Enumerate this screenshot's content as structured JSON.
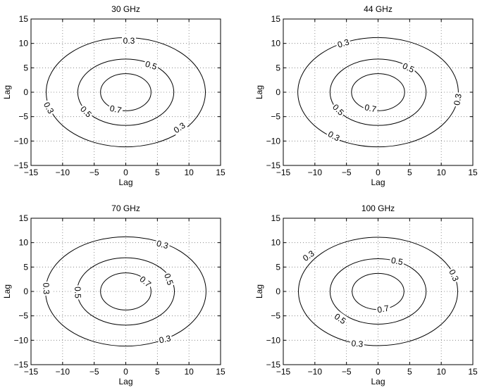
{
  "chart_data": [
    {
      "type": "contour",
      "title": "30 GHz",
      "xlabel": "Lag",
      "ylabel": "Lag",
      "xlim": [
        -15,
        15
      ],
      "ylim": [
        -15,
        15
      ],
      "xticks": [
        "−15",
        "−10",
        "−5",
        "0",
        "5",
        "10",
        "15"
      ],
      "yticks": [
        "15",
        "10",
        "5",
        "0",
        "−5",
        "−10",
        "−15"
      ],
      "grid": true,
      "levels": [
        {
          "level": "0.3",
          "rx": 12.6,
          "ry": 11.2
        },
        {
          "level": "0.5",
          "rx": 7.6,
          "ry": 6.8
        },
        {
          "level": "0.7",
          "rx": 4.0,
          "ry": 3.8
        }
      ],
      "labels": [
        {
          "text": "0.3",
          "x": 0.5,
          "y": 10.5,
          "angle": 0
        },
        {
          "text": "0.5",
          "x": 4.0,
          "y": 5.5,
          "angle": 18
        },
        {
          "text": "0.3",
          "x": -12.2,
          "y": -3.2,
          "angle": 60
        },
        {
          "text": "0.5",
          "x": -6.3,
          "y": -4.0,
          "angle": 45
        },
        {
          "text": "0.7",
          "x": -1.6,
          "y": -3.5,
          "angle": 12
        },
        {
          "text": "0.3",
          "x": 8.5,
          "y": -7.3,
          "angle": -35
        }
      ]
    },
    {
      "type": "contour",
      "title": "44 GHz",
      "xlabel": "Lag",
      "ylabel": "Lag",
      "xlim": [
        -15,
        15
      ],
      "ylim": [
        -15,
        15
      ],
      "xticks": [
        "−15",
        "−10",
        "−5",
        "0",
        "5",
        "10",
        "15"
      ],
      "yticks": [
        "15",
        "10",
        "5",
        "0",
        "−5",
        "−10",
        "−15"
      ],
      "grid": true,
      "levels": [
        {
          "level": "0.3",
          "rx": 12.7,
          "ry": 11.2
        },
        {
          "level": "0.5",
          "rx": 7.6,
          "ry": 6.8
        },
        {
          "level": "0.7",
          "rx": 4.2,
          "ry": 3.8
        }
      ],
      "labels": [
        {
          "text": "0.3",
          "x": -5.5,
          "y": 10.0,
          "angle": -18
        },
        {
          "text": "0.5",
          "x": 4.8,
          "y": 5.0,
          "angle": 25
        },
        {
          "text": "0.3",
          "x": 12.6,
          "y": -1.5,
          "angle": -80
        },
        {
          "text": "0.5",
          "x": -6.3,
          "y": -3.6,
          "angle": 45
        },
        {
          "text": "0.7",
          "x": -1.2,
          "y": -3.3,
          "angle": 12
        },
        {
          "text": "0.3",
          "x": -7.0,
          "y": -9.0,
          "angle": 28
        }
      ]
    },
    {
      "type": "contour",
      "title": "70 GHz",
      "xlabel": "Lag",
      "ylabel": "Lag",
      "xlim": [
        -15,
        15
      ],
      "ylim": [
        -15,
        15
      ],
      "xticks": [
        "−15",
        "−10",
        "−5",
        "0",
        "5",
        "10",
        "15"
      ],
      "yticks": [
        "15",
        "10",
        "5",
        "0",
        "−5",
        "−10",
        "−15"
      ],
      "grid": true,
      "levels": [
        {
          "level": "0.3",
          "rx": 12.7,
          "ry": 11.2
        },
        {
          "level": "0.5",
          "rx": 7.7,
          "ry": 6.9
        },
        {
          "level": "0.7",
          "rx": 4.0,
          "ry": 3.8
        }
      ],
      "labels": [
        {
          "text": "0.3",
          "x": 5.8,
          "y": 9.6,
          "angle": 15
        },
        {
          "text": "0.5",
          "x": 6.8,
          "y": 2.5,
          "angle": 70
        },
        {
          "text": "0.7",
          "x": 3.1,
          "y": 2.0,
          "angle": 40
        },
        {
          "text": "0.3",
          "x": -12.6,
          "y": 0.6,
          "angle": 88
        },
        {
          "text": "0.5",
          "x": -7.6,
          "y": -0.2,
          "angle": 88
        },
        {
          "text": "0.3",
          "x": 6.2,
          "y": -9.8,
          "angle": -12
        }
      ]
    },
    {
      "type": "contour",
      "title": "100 GHz",
      "xlabel": "Lag",
      "ylabel": "Lag",
      "xlim": [
        -15,
        15
      ],
      "ylim": [
        -15,
        15
      ],
      "xticks": [
        "−15",
        "−10",
        "−5",
        "0",
        "5",
        "10",
        "15"
      ],
      "yticks": [
        "15",
        "10",
        "5",
        "0",
        "−5",
        "−10",
        "−15"
      ],
      "grid": true,
      "levels": [
        {
          "level": "0.3",
          "rx": 12.6,
          "ry": 11.1
        },
        {
          "level": "0.5",
          "rx": 7.6,
          "ry": 6.7
        },
        {
          "level": "0.7",
          "rx": 4.1,
          "ry": 3.7
        }
      ],
      "labels": [
        {
          "text": "0.3",
          "x": -11.0,
          "y": 7.3,
          "angle": -35
        },
        {
          "text": "0.5",
          "x": 3.0,
          "y": 6.2,
          "angle": 10
        },
        {
          "text": "0.3",
          "x": 12.0,
          "y": 3.3,
          "angle": 65
        },
        {
          "text": "0.7",
          "x": 0.8,
          "y": -3.6,
          "angle": -10
        },
        {
          "text": "0.5",
          "x": -6.0,
          "y": -5.6,
          "angle": 35
        },
        {
          "text": "0.3",
          "x": -3.3,
          "y": -10.7,
          "angle": 5
        }
      ]
    }
  ]
}
